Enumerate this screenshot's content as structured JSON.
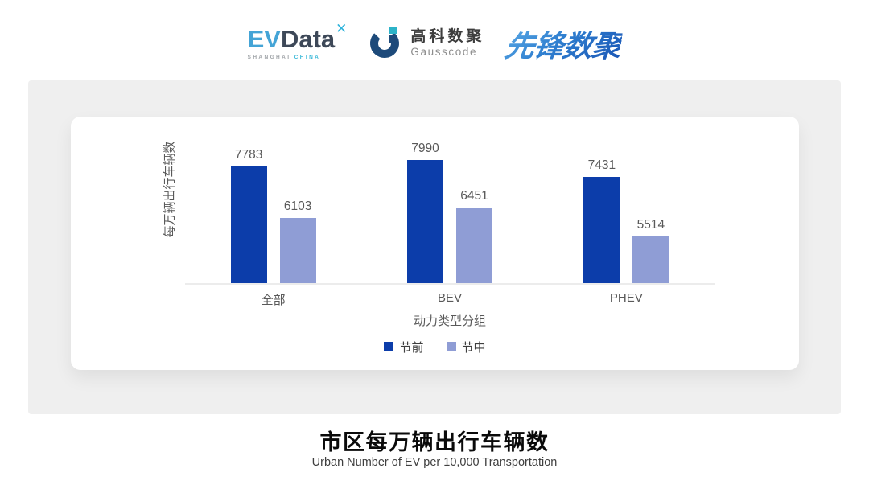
{
  "header": {
    "evdata": {
      "ev": "EV",
      "data": "Data",
      "mark": "✕",
      "sub_left": "SHANGHAI",
      "sub_right": "CHINA"
    },
    "gausscode": {
      "cn": "高科数聚",
      "en": "Gausscode"
    },
    "pioneer": {
      "text": "先锋数聚"
    }
  },
  "chart_data": {
    "type": "bar",
    "title": "市区每万辆出行车辆数",
    "subtitle": "Urban Number of EV per 10,000 Transportation",
    "xlabel": "动力类型分组",
    "ylabel": "每万辆出行车辆数",
    "categories": [
      "全部",
      "BEV",
      "PHEV"
    ],
    "series": [
      {
        "name": "节前",
        "color": "#0c3daa",
        "values": [
          7783,
          7990,
          7431
        ]
      },
      {
        "name": "节中",
        "color": "#8f9dd5",
        "values": [
          6103,
          6451,
          5514
        ]
      }
    ],
    "ylim": [
      4000,
      8200
    ],
    "grid": false,
    "legend_position": "bottom",
    "value_labels": true
  },
  "footer": {
    "title": "市区每万辆出行车辆数",
    "subtitle": "Urban Number of EV per 10,000 Transportation"
  },
  "colors": {
    "panel_bg": "#efefef",
    "card_bg": "#ffffff",
    "axis_line": "#ececec",
    "value_text": "#595959",
    "legend_text": "#3f3f3f",
    "series_pre": "#0c3daa",
    "series_mid": "#8f9dd5"
  }
}
